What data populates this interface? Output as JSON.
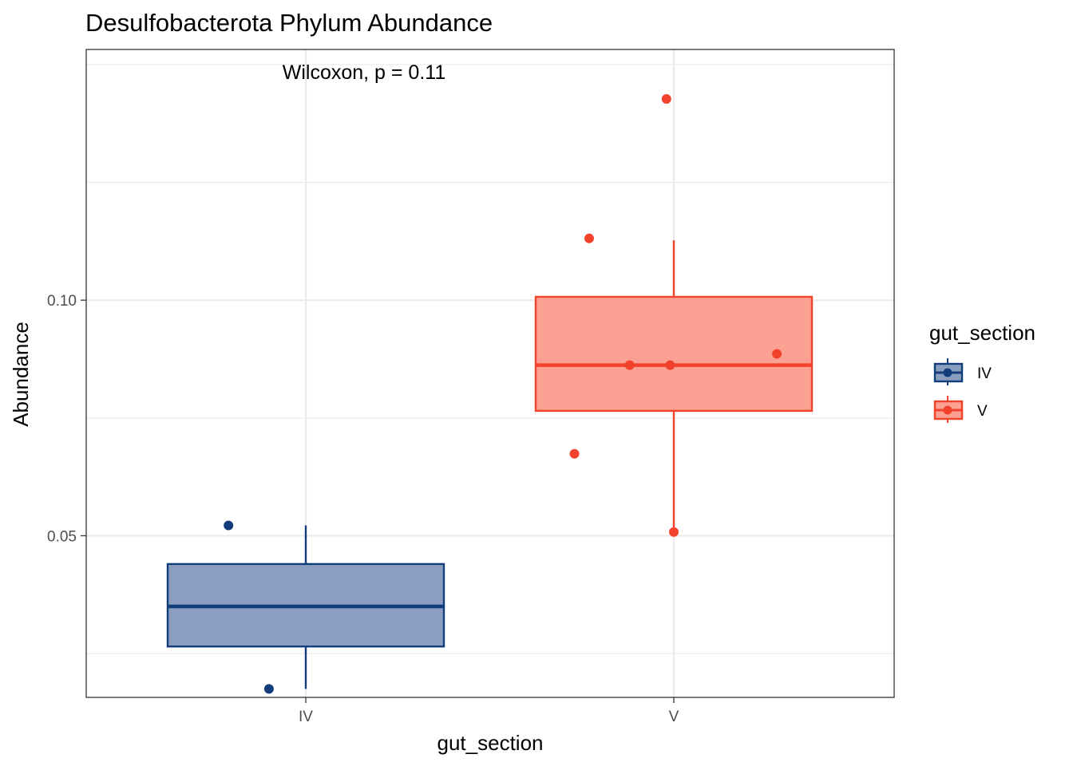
{
  "chart_data": {
    "type": "boxplot",
    "title": "Desulfobacterota Phylum Abundance",
    "xlabel": "gut_section",
    "ylabel": "Abundance",
    "categories": [
      "IV",
      "V"
    ],
    "ylim": [
      0.0157,
      0.1532
    ],
    "yticks": [
      0.05,
      0.1
    ],
    "ytick_labels": [
      "0.05",
      "0.10"
    ],
    "grid": true,
    "annotation": "Wilcoxon, p = 0.11",
    "legend": {
      "title": "gut_section",
      "position": "right",
      "entries": [
        {
          "label": "IV",
          "color": "#123d7a"
        },
        {
          "label": "V",
          "color": "#f2422b"
        }
      ]
    },
    "series": [
      {
        "category": "IV",
        "color": "#123d7a",
        "fill": "#8a9fc0",
        "whisker_low": 0.0175,
        "q1": 0.0265,
        "median": 0.035,
        "q3": 0.044,
        "whisker_high": 0.0522,
        "points": [
          {
            "x": 0.79,
            "y": 0.0522
          },
          {
            "x": 0.9,
            "y": 0.0175
          }
        ]
      },
      {
        "category": "V",
        "color": "#f2422b",
        "fill": "#fca093",
        "whisker_low": 0.0508,
        "q1": 0.0765,
        "median": 0.0862,
        "q3": 0.1007,
        "whisker_high": 0.1127,
        "points": [
          {
            "x": 1.98,
            "y": 0.1427
          },
          {
            "x": 1.77,
            "y": 0.1131
          },
          {
            "x": 2.28,
            "y": 0.0886
          },
          {
            "x": 1.88,
            "y": 0.0862
          },
          {
            "x": 1.99,
            "y": 0.0862
          },
          {
            "x": 1.73,
            "y": 0.0674
          },
          {
            "x": 2.0,
            "y": 0.0508
          }
        ]
      }
    ]
  }
}
